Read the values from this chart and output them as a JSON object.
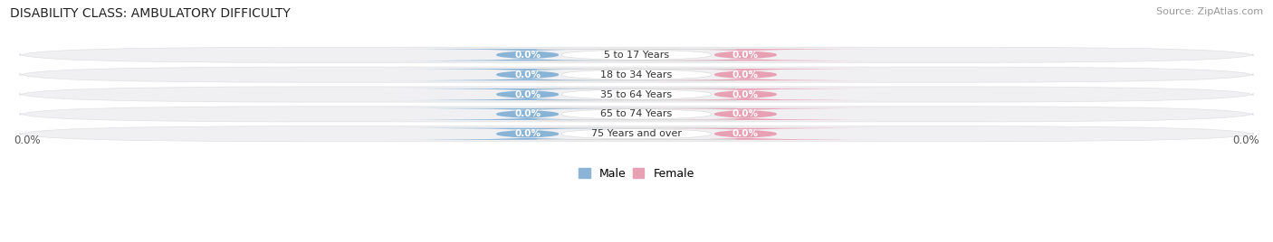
{
  "title": "DISABILITY CLASS: AMBULATORY DIFFICULTY",
  "source": "Source: ZipAtlas.com",
  "categories": [
    "5 to 17 Years",
    "18 to 34 Years",
    "35 to 64 Years",
    "65 to 74 Years",
    "75 Years and over"
  ],
  "male_values": [
    0.0,
    0.0,
    0.0,
    0.0,
    0.0
  ],
  "female_values": [
    0.0,
    0.0,
    0.0,
    0.0,
    0.0
  ],
  "male_color": "#8ab4d6",
  "female_color": "#e8a0b4",
  "row_bg_color": "#f0f0f2",
  "row_border_color": "#e0e0e4",
  "x_left_label": "0.0%",
  "x_right_label": "0.0%",
  "x_max": 1.0,
  "title_fontsize": 10,
  "source_fontsize": 8,
  "tick_fontsize": 8.5,
  "legend_fontsize": 9,
  "category_fontsize": 8,
  "value_fontsize": 7.5
}
